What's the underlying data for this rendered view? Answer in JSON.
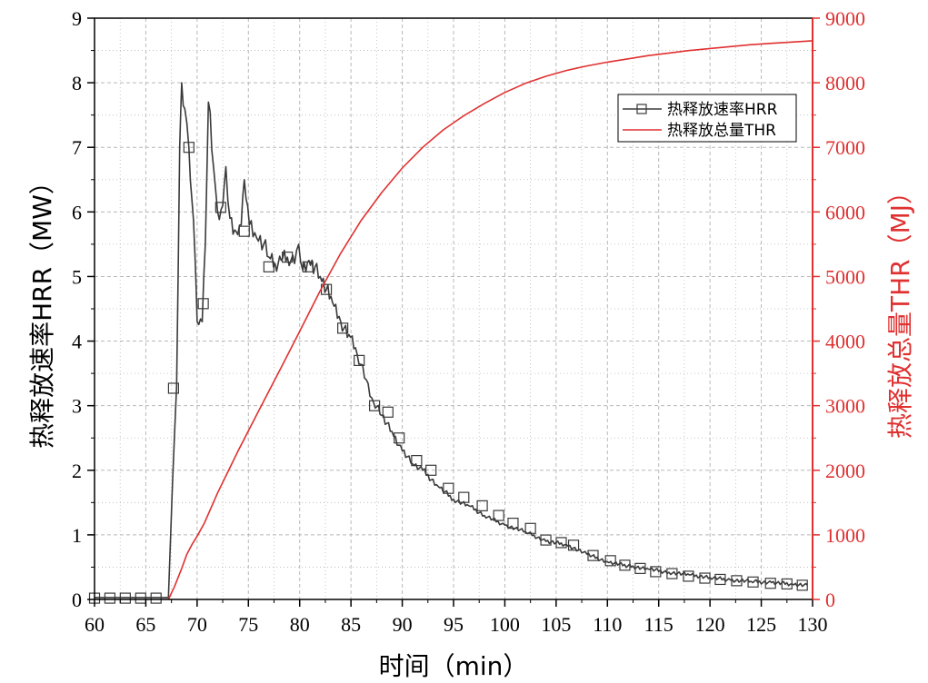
{
  "chart_data": {
    "type": "line",
    "xlabel": "时间（min）",
    "ylabel_left": "热释放速率HRR（MW）",
    "ylabel_right": "热释放总量THR（MJ）",
    "xlim": [
      60,
      130
    ],
    "ylim_left": [
      0,
      9
    ],
    "ylim_right": [
      0,
      9000
    ],
    "x_ticks": [
      "60",
      "65",
      "70",
      "75",
      "80",
      "85",
      "90",
      "95",
      "100",
      "105",
      "110",
      "115",
      "120",
      "125",
      "130"
    ],
    "y_left_ticks": [
      "0",
      "1",
      "2",
      "3",
      "4",
      "5",
      "6",
      "7",
      "8",
      "9"
    ],
    "y_right_ticks": [
      "0",
      "1000",
      "2000",
      "3000",
      "4000",
      "5000",
      "6000",
      "7000",
      "8000",
      "9000"
    ],
    "grid": true,
    "legend_position": "top-right",
    "colors": {
      "hrr": "#3a3a3a",
      "thr": "#e03030",
      "grid": "#b8b8b8"
    },
    "series": [
      {
        "name": "热释放速率HRR",
        "axis": "left",
        "marker": "square-open",
        "x": [
          60,
          67.2,
          67.6,
          68.0,
          68.3,
          68.5,
          68.8,
          69.2,
          69.8,
          70.0,
          70.5,
          70.8,
          71.1,
          71.6,
          72.0,
          72.5,
          72.8,
          73.2,
          73.8,
          74.3,
          74.6,
          75.1,
          75.8,
          76.5,
          77.0,
          77.6,
          78.2,
          78.8,
          79.5,
          79.9,
          80.3,
          80.9,
          81.5,
          82.0,
          82.6,
          83.2,
          84.0,
          84.8,
          85.6,
          86.5,
          87.2,
          88.0,
          89.0,
          90.0,
          91.0,
          92.0,
          93.5,
          95.0,
          96.5,
          98.0,
          100.0,
          102.0,
          104.0,
          106.0,
          108.0,
          110.0,
          112.0,
          114.0,
          116.0,
          118.0,
          120.0,
          122.0,
          124.0,
          126.0,
          128.0,
          129.5
        ],
        "values": [
          0.03,
          0.03,
          1.8,
          3.3,
          7.0,
          8.0,
          7.6,
          7.0,
          5.3,
          4.3,
          4.3,
          5.5,
          7.7,
          6.7,
          6.0,
          6.1,
          6.7,
          5.9,
          5.7,
          5.8,
          6.5,
          5.8,
          5.6,
          5.5,
          5.3,
          5.2,
          5.25,
          5.3,
          5.2,
          5.5,
          5.1,
          5.25,
          5.15,
          5.0,
          4.8,
          4.6,
          4.3,
          4.1,
          3.8,
          3.4,
          3.05,
          2.85,
          2.6,
          2.3,
          2.1,
          2.0,
          1.75,
          1.55,
          1.45,
          1.3,
          1.15,
          1.05,
          0.9,
          0.85,
          0.7,
          0.58,
          0.52,
          0.47,
          0.42,
          0.38,
          0.34,
          0.3,
          0.28,
          0.26,
          0.24,
          0.22
        ],
        "marker_x": [
          60,
          61.5,
          63,
          64.5,
          66,
          67.7,
          69.2,
          70.6,
          72.3,
          74.6,
          77.0,
          78.8,
          80.8,
          82.6,
          84.2,
          85.8,
          87.3,
          88.6,
          89.7,
          91.4,
          92.8,
          94.5,
          96.0,
          97.8,
          99.4,
          100.8,
          102.5,
          104.0,
          105.5,
          106.7,
          108.6,
          110.3,
          111.7,
          113.2,
          114.7,
          116.3,
          117.9,
          119.5,
          121.0,
          122.6,
          124.2,
          125.9,
          127.5,
          129.0
        ],
        "marker_values": [
          0.02,
          0.02,
          0.02,
          0.02,
          0.02,
          3.27,
          7.0,
          4.58,
          6.07,
          5.7,
          5.15,
          5.3,
          5.15,
          4.8,
          4.2,
          3.7,
          3.0,
          2.9,
          2.5,
          2.15,
          2.0,
          1.72,
          1.58,
          1.45,
          1.3,
          1.18,
          1.1,
          0.92,
          0.88,
          0.84,
          0.68,
          0.6,
          0.53,
          0.48,
          0.43,
          0.4,
          0.36,
          0.33,
          0.31,
          0.29,
          0.27,
          0.25,
          0.24,
          0.22
        ]
      },
      {
        "name": "热释放总量THR",
        "axis": "right",
        "marker": "none",
        "x": [
          67.2,
          67.8,
          68.5,
          69.0,
          69.5,
          70.0,
          70.7,
          72.0,
          74.0,
          76.0,
          78.0,
          80.0,
          82.0,
          84.0,
          86.0,
          88.0,
          90.0,
          92.0,
          94.0,
          96.0,
          98.0,
          100.0,
          102.0,
          104.0,
          106.0,
          108.0,
          110.0,
          112.0,
          114.0,
          116.0,
          118.0,
          120.0,
          122.0,
          124.0,
          126.0,
          128.0,
          130.0
        ],
        "values": [
          0,
          200,
          480,
          700,
          850,
          980,
          1180,
          1650,
          2300,
          2920,
          3530,
          4150,
          4780,
          5360,
          5870,
          6300,
          6680,
          7000,
          7270,
          7490,
          7680,
          7850,
          7990,
          8100,
          8190,
          8260,
          8320,
          8370,
          8420,
          8460,
          8500,
          8530,
          8560,
          8590,
          8610,
          8630,
          8650
        ]
      }
    ]
  }
}
